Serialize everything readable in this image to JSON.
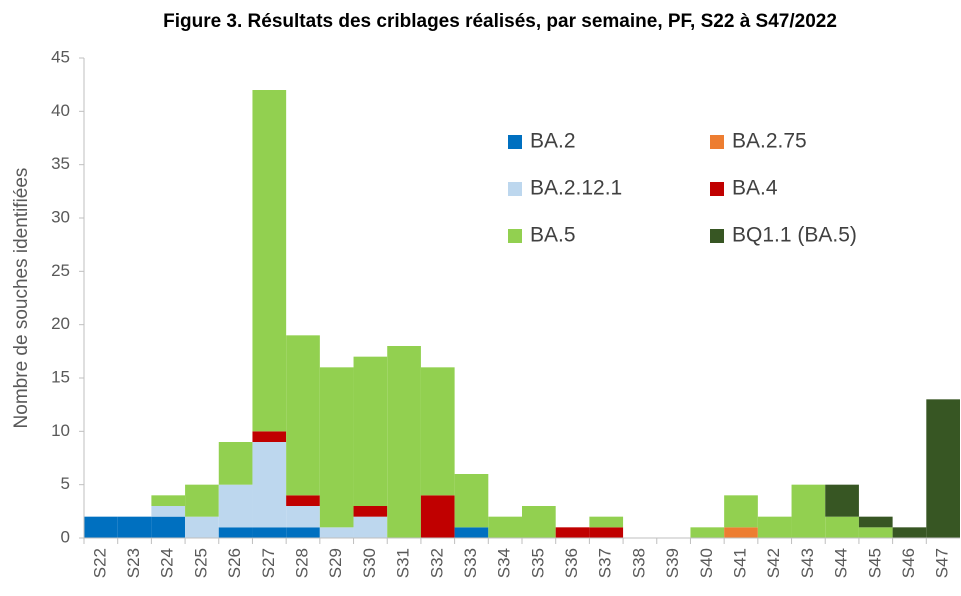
{
  "chart_data": {
    "type": "stacked_bar",
    "title": "Figure 3. Résultats des criblages réalisés, par semaine, PF, S22 à S47/2022",
    "y_label": "Nombre de souches identifiées",
    "categories": [
      "S22",
      "S23",
      "S24",
      "S25",
      "S26",
      "S27",
      "S28",
      "S29",
      "S30",
      "S31",
      "S32",
      "S33",
      "S34",
      "S35",
      "S36",
      "S37",
      "S38",
      "S39",
      "S40",
      "S41",
      "S42",
      "S43",
      "S44",
      "S45",
      "S46",
      "S47"
    ],
    "series": [
      {
        "name": "BA.2",
        "color": "#0070c0",
        "values": [
          2,
          2,
          2,
          0,
          1,
          1,
          1,
          0,
          0,
          0,
          0,
          1,
          0,
          0,
          0,
          0,
          0,
          0,
          0,
          0,
          0,
          0,
          0,
          0,
          0,
          0
        ]
      },
      {
        "name": "BA.2.75",
        "color": "#ed7d31",
        "values": [
          0,
          0,
          0,
          0,
          0,
          0,
          0,
          0,
          0,
          0,
          0,
          0,
          0,
          0,
          0,
          0,
          0,
          0,
          0,
          1,
          0,
          0,
          0,
          0,
          0,
          0
        ]
      },
      {
        "name": "BA.2.12.1",
        "color": "#bdd7ee",
        "values": [
          0,
          0,
          1,
          2,
          4,
          8,
          2,
          1,
          2,
          0,
          0,
          0,
          0,
          0,
          0,
          0,
          0,
          0,
          0,
          0,
          0,
          0,
          0,
          0,
          0,
          0
        ]
      },
      {
        "name": "BA.4",
        "color": "#c00000",
        "values": [
          0,
          0,
          0,
          0,
          0,
          1,
          1,
          0,
          1,
          0,
          4,
          0,
          0,
          0,
          1,
          1,
          0,
          0,
          0,
          0,
          0,
          0,
          0,
          0,
          0,
          0
        ]
      },
      {
        "name": "BA.5",
        "color": "#92d050",
        "values": [
          0,
          0,
          1,
          3,
          4,
          32,
          15,
          15,
          14,
          18,
          12,
          5,
          2,
          3,
          0,
          1,
          0,
          0,
          1,
          3,
          2,
          5,
          2,
          1,
          0,
          0
        ]
      },
      {
        "name": "BQ1.1 (BA.5)",
        "color": "#375623",
        "values": [
          0,
          0,
          0,
          0,
          0,
          0,
          0,
          0,
          0,
          0,
          0,
          0,
          0,
          0,
          0,
          0,
          0,
          0,
          0,
          0,
          0,
          0,
          3,
          1,
          1,
          13
        ]
      }
    ],
    "ylim": [
      0,
      45
    ],
    "yticks": [
      0,
      5,
      10,
      15,
      20,
      25,
      30,
      35,
      40,
      45
    ],
    "grid": false
  }
}
